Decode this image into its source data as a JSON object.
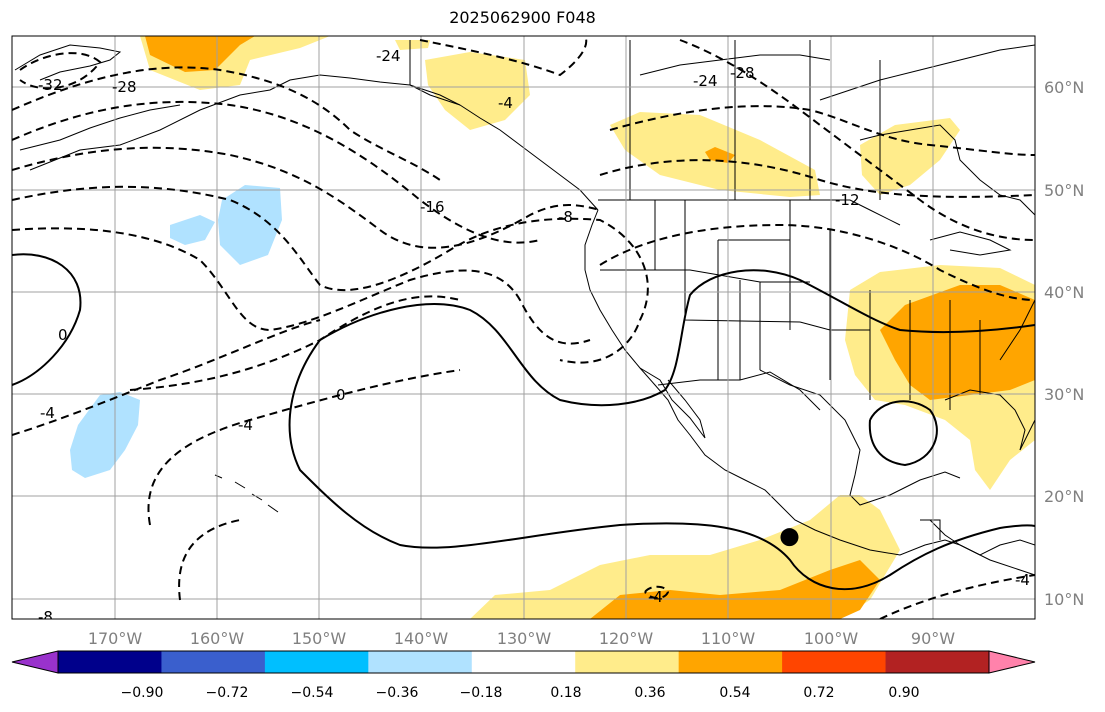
{
  "title": "2025062900 F048",
  "map": {
    "lon_range": [
      -180,
      -80
    ],
    "lat_range": [
      8,
      65
    ],
    "grid": true,
    "lon_ticks": [
      "170°W",
      "160°W",
      "150°W",
      "140°W",
      "130°W",
      "120°W",
      "110°W",
      "100°W",
      "90°W"
    ],
    "lat_ticks": [
      "10°N",
      "20°N",
      "30°N",
      "40°N",
      "50°N",
      "60°N"
    ],
    "contour_labels": [
      "-32",
      "-28",
      "-24",
      "-24",
      "-28",
      "-4",
      "-16",
      "-8",
      "-12",
      "0",
      "0",
      "-4",
      "-4",
      "-4",
      "-4",
      "-8"
    ],
    "marker": {
      "lon": -104,
      "lat": 16,
      "color": "#000000"
    }
  },
  "colorbar": {
    "colors": [
      "#9932cc",
      "#00008b",
      "#3a5fcd",
      "#00bfff",
      "#b0e2ff",
      "#ffffff",
      "#ffec8b",
      "#ffa500",
      "#ff4500",
      "#b22222",
      "#ff82ab"
    ],
    "tick_labels": [
      "−0.90",
      "−0.72",
      "−0.54",
      "−0.36",
      "−0.18",
      "0.18",
      "0.36",
      "0.54",
      "0.72",
      "0.90"
    ]
  }
}
